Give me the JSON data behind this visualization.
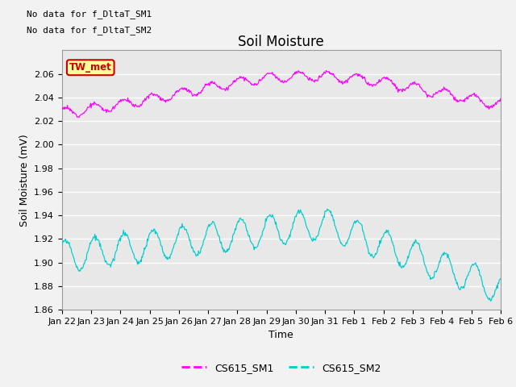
{
  "title": "Soil Moisture",
  "xlabel": "Time",
  "ylabel": "Soil Moisture (mV)",
  "ylim": [
    1.86,
    2.08
  ],
  "yticks": [
    1.86,
    1.88,
    1.9,
    1.92,
    1.94,
    1.96,
    1.98,
    2.0,
    2.02,
    2.04,
    2.06
  ],
  "xtick_labels": [
    "Jan 22",
    "Jan 23",
    "Jan 24",
    "Jan 25",
    "Jan 26",
    "Jan 27",
    "Jan 28",
    "Jan 29",
    "Jan 30",
    "Jan 31",
    "Feb 1",
    "Feb 2",
    "Feb 3",
    "Feb 4",
    "Feb 5",
    "Feb 6"
  ],
  "color_sm1": "#FF00FF",
  "color_sm2": "#00CCCC",
  "legend_labels": [
    "CS615_SM1",
    "CS615_SM2"
  ],
  "annot_lines": [
    "No data for f_DltaT_SM1",
    "No data for f_DltaT_SM2"
  ],
  "tw_met_label": "TW_met",
  "tw_met_color": "#CC0000",
  "tw_met_bg": "#FFFF99",
  "background_color": "#E8E8E8",
  "grid_color": "#FFFFFF",
  "title_fontsize": 12,
  "axis_fontsize": 9,
  "tick_fontsize": 8,
  "fig_bg": "#F2F2F2"
}
